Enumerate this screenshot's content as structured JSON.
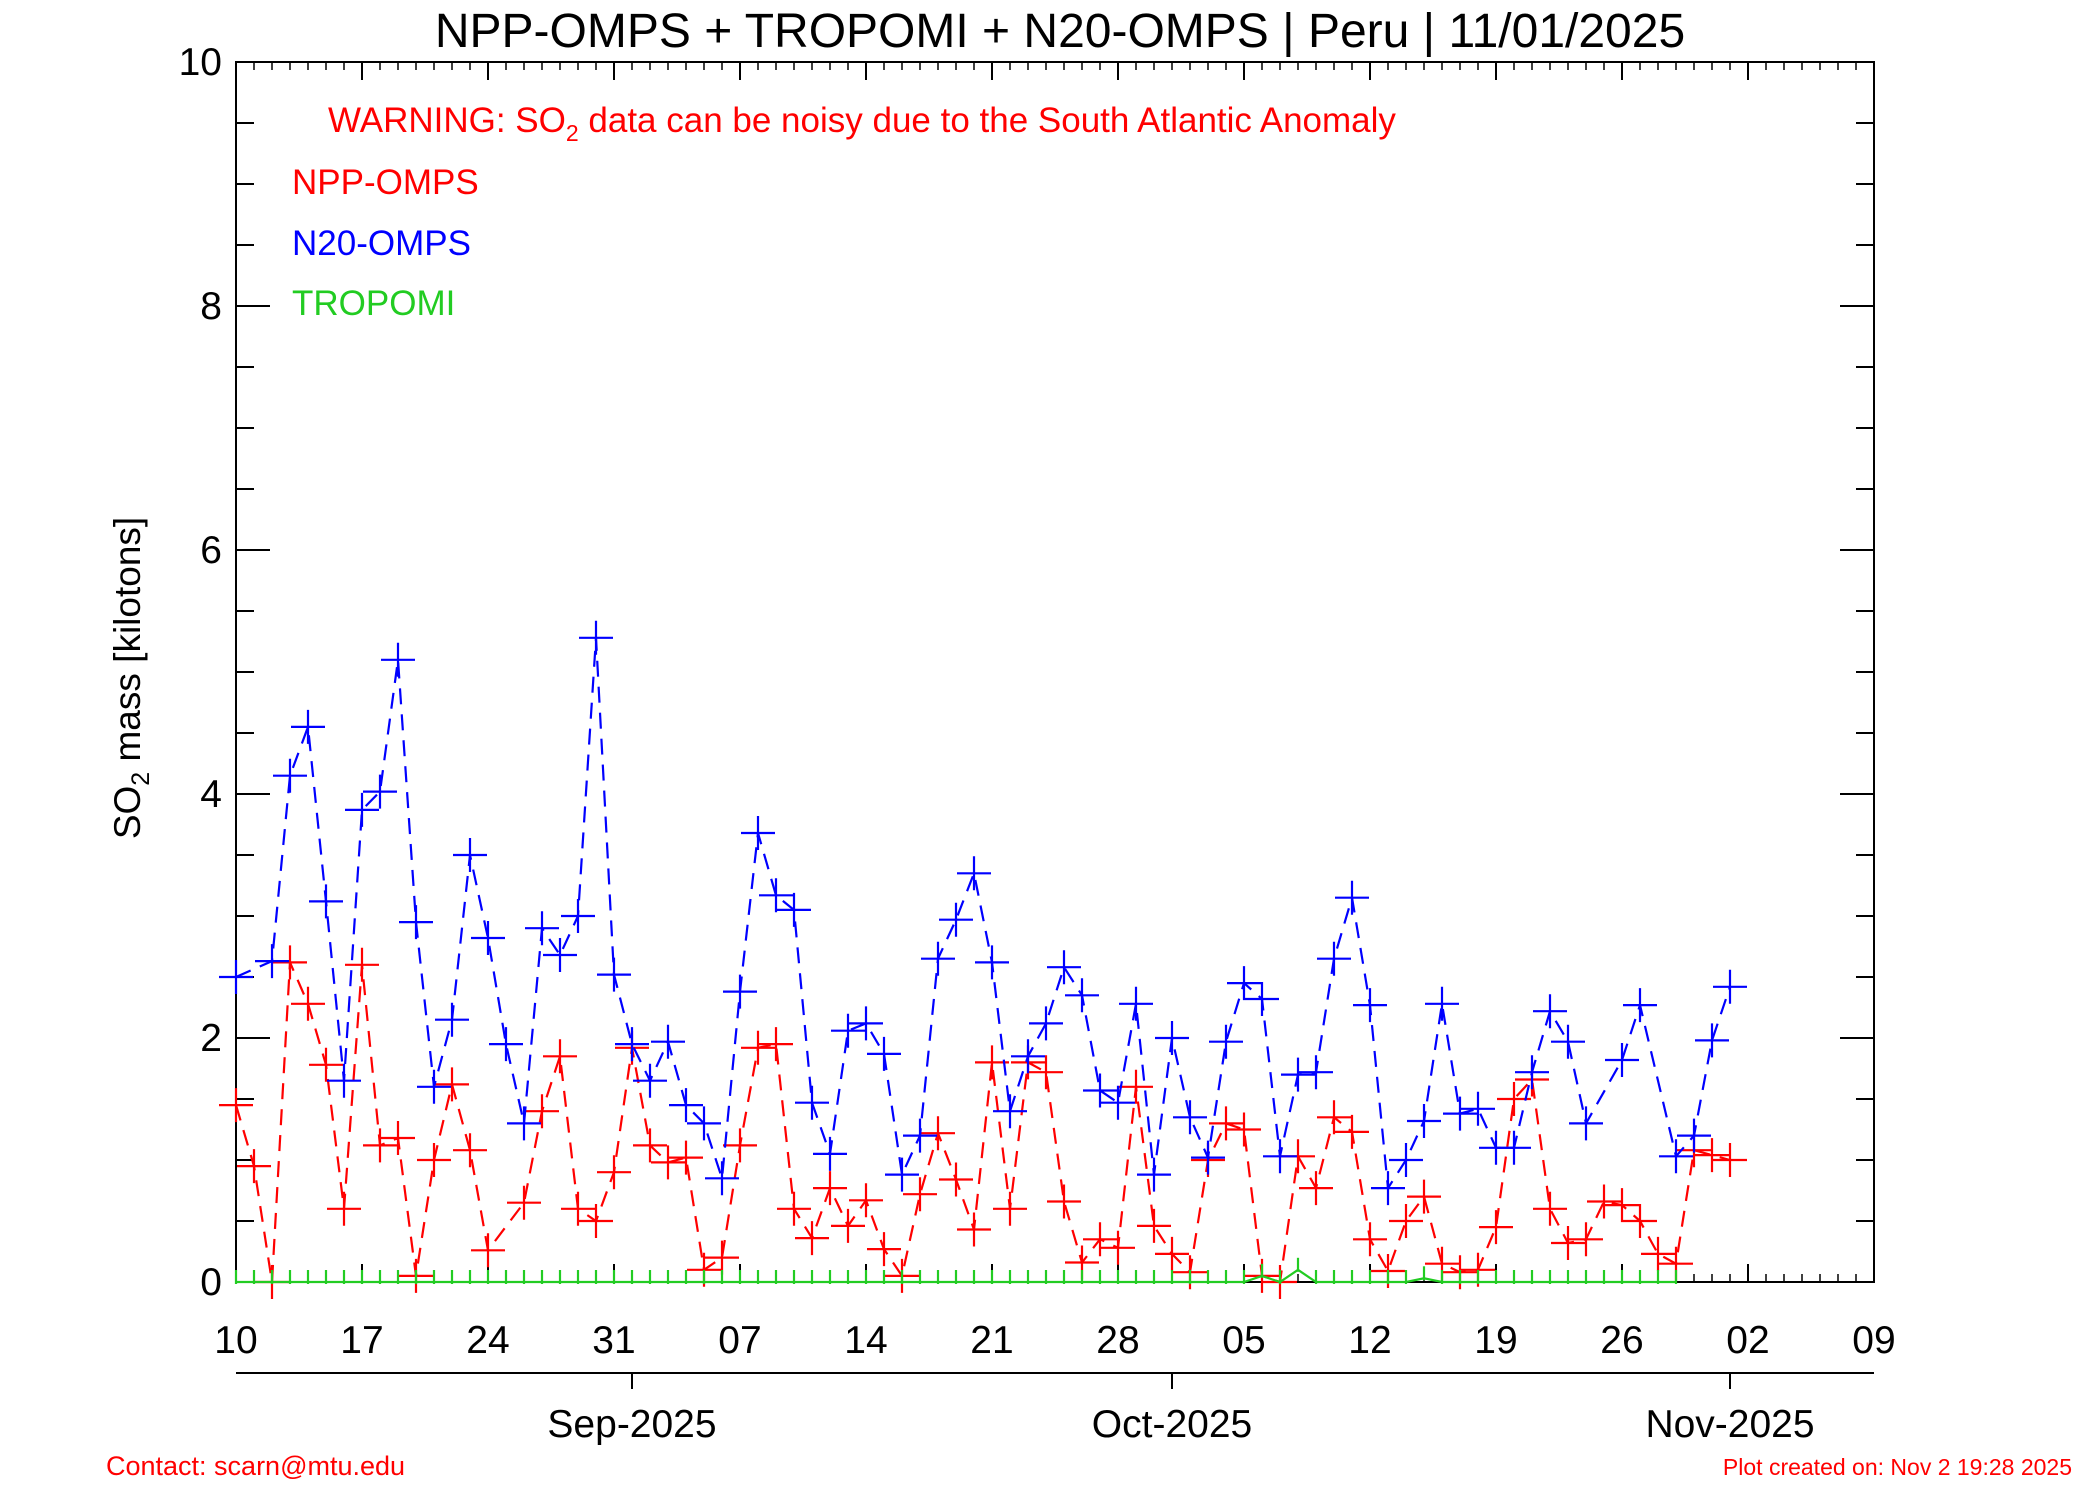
{
  "chart_data": {
    "type": "line",
    "title": "NPP-OMPS + TROPOMI + N20-OMPS | Peru | 11/01/2025",
    "warning": {
      "prefix": "WARNING: SO",
      "subscript": "2",
      "suffix": " data can be noisy due to the South Atlantic Anomaly",
      "color": "#ff0000"
    },
    "ylabel": {
      "prefix": "SO",
      "subscript": "2",
      "suffix": " mass [kilotons]"
    },
    "ylim": [
      0,
      10
    ],
    "y_ticks": [
      "0",
      "2",
      "4",
      "6",
      "8",
      "10"
    ],
    "x_range_days": [
      0,
      91
    ],
    "x_start_date": "2025-08-10",
    "x_tick_labels": [
      "10",
      "17",
      "24",
      "31",
      "07",
      "14",
      "21",
      "28",
      "05",
      "12",
      "19",
      "26",
      "02",
      "09"
    ],
    "month_labels": [
      {
        "label": "Sep-2025",
        "day": 22
      },
      {
        "label": "Oct-2025",
        "day": 52
      },
      {
        "label": "Nov-2025",
        "day": 83
      }
    ],
    "grid": false,
    "legend_position": "top-left",
    "series": [
      {
        "name": "NPP-OMPS",
        "color": "#ff0000",
        "style": "dashed",
        "marker": "plus",
        "points": [
          [
            0,
            1.45
          ],
          [
            1,
            0.95
          ],
          [
            2,
            0.0
          ],
          [
            3,
            2.62
          ],
          [
            4,
            2.28
          ],
          [
            5,
            1.78
          ],
          [
            6,
            0.6
          ],
          [
            7,
            2.6
          ],
          [
            8,
            1.12
          ],
          [
            9,
            1.18
          ],
          [
            10,
            0.05
          ],
          [
            11,
            1.0
          ],
          [
            12,
            1.62
          ],
          [
            13,
            1.08
          ],
          [
            14,
            0.26
          ],
          [
            16,
            0.65
          ],
          [
            17,
            1.4
          ],
          [
            18,
            1.85
          ],
          [
            19,
            0.6
          ],
          [
            20,
            0.5
          ],
          [
            21,
            0.9
          ],
          [
            22,
            1.92
          ],
          [
            23,
            1.12
          ],
          [
            24,
            0.98
          ],
          [
            25,
            1.02
          ],
          [
            26,
            0.1
          ],
          [
            27,
            0.2
          ],
          [
            28,
            1.12
          ],
          [
            29,
            1.92
          ],
          [
            30,
            1.95
          ],
          [
            31,
            0.6
          ],
          [
            32,
            0.36
          ],
          [
            33,
            0.77
          ],
          [
            34,
            0.46
          ],
          [
            35,
            0.67
          ],
          [
            36,
            0.27
          ],
          [
            37,
            0.05
          ],
          [
            38,
            0.72
          ],
          [
            39,
            1.22
          ],
          [
            40,
            0.84
          ],
          [
            41,
            0.43
          ],
          [
            42,
            1.8
          ],
          [
            43,
            0.6
          ],
          [
            44,
            1.8
          ],
          [
            45,
            1.72
          ],
          [
            46,
            0.66
          ],
          [
            47,
            0.16
          ],
          [
            48,
            0.35
          ],
          [
            49,
            0.28
          ],
          [
            50,
            1.6
          ],
          [
            51,
            0.46
          ],
          [
            52,
            0.23
          ],
          [
            53,
            0.08
          ],
          [
            54,
            1.0
          ],
          [
            55,
            1.3
          ],
          [
            56,
            1.25
          ],
          [
            57,
            0.05
          ],
          [
            58,
            0.0
          ],
          [
            59,
            1.03
          ],
          [
            60,
            0.77
          ],
          [
            61,
            1.35
          ],
          [
            62,
            1.23
          ],
          [
            63,
            0.35
          ],
          [
            64,
            0.09
          ],
          [
            65,
            0.5
          ],
          [
            66,
            0.7
          ],
          [
            67,
            0.15
          ],
          [
            68,
            0.08
          ],
          [
            69,
            0.1
          ],
          [
            70,
            0.45
          ],
          [
            71,
            1.5
          ],
          [
            72,
            1.66
          ],
          [
            73,
            0.6
          ],
          [
            74,
            0.32
          ],
          [
            75,
            0.35
          ],
          [
            76,
            0.66
          ],
          [
            77,
            0.63
          ],
          [
            78,
            0.5
          ],
          [
            79,
            0.23
          ],
          [
            80,
            0.15
          ],
          [
            81,
            1.08
          ],
          [
            82,
            1.04
          ],
          [
            83,
            1.0
          ]
        ]
      },
      {
        "name": "N20-OMPS",
        "color": "#0000ff",
        "style": "dashed",
        "marker": "plus",
        "points": [
          [
            0,
            2.5
          ],
          [
            2,
            2.63
          ],
          [
            3,
            4.15
          ],
          [
            4,
            4.55
          ],
          [
            5,
            3.12
          ],
          [
            6,
            1.65
          ],
          [
            7,
            3.87
          ],
          [
            8,
            4.02
          ],
          [
            9,
            5.1
          ],
          [
            10,
            2.95
          ],
          [
            11,
            1.6
          ],
          [
            12,
            2.15
          ],
          [
            13,
            3.5
          ],
          [
            14,
            2.82
          ],
          [
            15,
            1.95
          ],
          [
            16,
            1.3
          ],
          [
            17,
            2.9
          ],
          [
            18,
            2.68
          ],
          [
            19,
            3.0
          ],
          [
            20,
            5.28
          ],
          [
            21,
            2.52
          ],
          [
            22,
            1.95
          ],
          [
            23,
            1.65
          ],
          [
            24,
            1.97
          ],
          [
            25,
            1.45
          ],
          [
            26,
            1.3
          ],
          [
            27,
            0.85
          ],
          [
            28,
            2.38
          ],
          [
            29,
            3.68
          ],
          [
            30,
            3.17
          ],
          [
            31,
            3.05
          ],
          [
            32,
            1.47
          ],
          [
            33,
            1.05
          ],
          [
            34,
            2.06
          ],
          [
            35,
            2.12
          ],
          [
            36,
            1.87
          ],
          [
            37,
            0.88
          ],
          [
            38,
            1.2
          ],
          [
            39,
            2.65
          ],
          [
            40,
            2.97
          ],
          [
            41,
            3.35
          ],
          [
            42,
            2.62
          ],
          [
            43,
            1.4
          ],
          [
            44,
            1.85
          ],
          [
            45,
            2.12
          ],
          [
            46,
            2.58
          ],
          [
            47,
            2.35
          ],
          [
            48,
            1.57
          ],
          [
            49,
            1.47
          ],
          [
            50,
            2.28
          ],
          [
            51,
            0.88
          ],
          [
            52,
            2.0
          ],
          [
            53,
            1.35
          ],
          [
            54,
            1.02
          ],
          [
            55,
            1.97
          ],
          [
            56,
            2.45
          ],
          [
            57,
            2.32
          ],
          [
            58,
            1.03
          ],
          [
            59,
            1.7
          ],
          [
            60,
            1.72
          ],
          [
            61,
            2.65
          ],
          [
            62,
            3.15
          ],
          [
            63,
            2.27
          ],
          [
            64,
            0.77
          ],
          [
            65,
            1.0
          ],
          [
            66,
            1.32
          ],
          [
            67,
            2.28
          ],
          [
            68,
            1.38
          ],
          [
            69,
            1.42
          ],
          [
            70,
            1.1
          ],
          [
            71,
            1.1
          ],
          [
            72,
            1.72
          ],
          [
            73,
            2.22
          ],
          [
            74,
            1.97
          ],
          [
            75,
            1.3
          ],
          [
            77,
            1.82
          ],
          [
            78,
            2.27
          ],
          [
            80,
            1.03
          ],
          [
            81,
            1.2
          ],
          [
            82,
            1.98
          ],
          [
            83,
            2.42
          ]
        ]
      },
      {
        "name": "TROPOMI",
        "color": "#22cc22",
        "style": "solid",
        "marker": "tick",
        "points": [
          [
            0,
            0
          ],
          [
            1,
            0
          ],
          [
            2,
            0
          ],
          [
            3,
            0
          ],
          [
            4,
            0
          ],
          [
            5,
            0
          ],
          [
            6,
            0
          ],
          [
            7,
            0
          ],
          [
            8,
            0
          ],
          [
            9,
            0
          ],
          [
            10,
            0
          ],
          [
            11,
            0
          ],
          [
            12,
            0
          ],
          [
            13,
            0
          ],
          [
            14,
            0
          ],
          [
            15,
            0
          ],
          [
            16,
            0
          ],
          [
            17,
            0
          ],
          [
            18,
            0
          ],
          [
            19,
            0
          ],
          [
            20,
            0
          ],
          [
            21,
            0
          ],
          [
            22,
            0
          ],
          [
            23,
            0
          ],
          [
            24,
            0
          ],
          [
            25,
            0
          ],
          [
            26,
            0
          ],
          [
            27,
            0
          ],
          [
            28,
            0
          ],
          [
            29,
            0
          ],
          [
            30,
            0
          ],
          [
            31,
            0
          ],
          [
            32,
            0
          ],
          [
            33,
            0
          ],
          [
            34,
            0
          ],
          [
            35,
            0
          ],
          [
            36,
            0
          ],
          [
            37,
            0
          ],
          [
            38,
            0
          ],
          [
            39,
            0
          ],
          [
            40,
            0
          ],
          [
            41,
            0
          ],
          [
            42,
            0
          ],
          [
            43,
            0
          ],
          [
            44,
            0
          ],
          [
            45,
            0
          ],
          [
            46,
            0
          ],
          [
            47,
            0
          ],
          [
            48,
            0
          ],
          [
            49,
            0
          ],
          [
            50,
            0
          ],
          [
            51,
            0
          ],
          [
            52,
            0
          ],
          [
            53,
            0
          ],
          [
            54,
            0
          ],
          [
            55,
            0
          ],
          [
            56,
            0
          ],
          [
            57,
            0.05
          ],
          [
            58,
            0
          ],
          [
            59,
            0.1
          ],
          [
            60,
            0
          ],
          [
            61,
            0
          ],
          [
            62,
            0
          ],
          [
            63,
            0
          ],
          [
            64,
            0
          ],
          [
            65,
            0
          ],
          [
            66,
            0.03
          ],
          [
            67,
            0
          ],
          [
            68,
            0
          ],
          [
            69,
            0
          ],
          [
            70,
            0
          ],
          [
            71,
            0
          ],
          [
            72,
            0
          ],
          [
            73,
            0
          ],
          [
            74,
            0
          ],
          [
            75,
            0
          ],
          [
            76,
            0
          ],
          [
            77,
            0
          ],
          [
            78,
            0
          ],
          [
            79,
            0
          ],
          [
            80,
            0
          ]
        ]
      }
    ]
  },
  "footer": {
    "contact": "Contact: scarn@mtu.edu",
    "created": "Plot created on: Nov  2 19:28 2025",
    "color": "#ff0000"
  }
}
